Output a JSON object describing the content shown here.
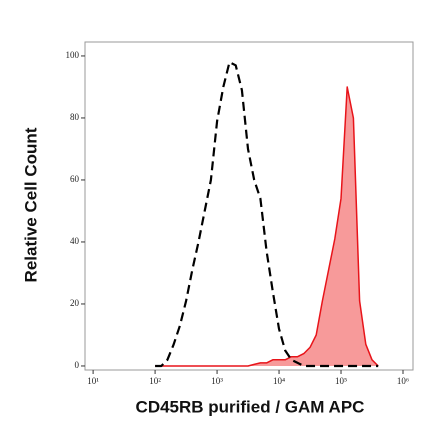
{
  "chart_data": {
    "type": "area",
    "xlabel": "CD45RB purified / GAM APC",
    "ylabel": "Relative Cell Count",
    "xscale": "log",
    "x": [
      100,
      126,
      158,
      200,
      251,
      316,
      398,
      501,
      631,
      794,
      1000,
      1259,
      1585,
      1995,
      2512,
      3162,
      3981,
      5012,
      6310,
      7943,
      10000,
      12589,
      15849,
      19953,
      25119,
      31623,
      39811,
      50119,
      63096,
      79433,
      100000,
      125893,
      158489,
      199526,
      251189,
      316228,
      398107
    ],
    "series": [
      {
        "color": "#000000",
        "linestyle": "dashed",
        "fill": false,
        "values": [
          0,
          0,
          2,
          7,
          13,
          21,
          31,
          40,
          50,
          60,
          79,
          90,
          98,
          97,
          89,
          70,
          60,
          54,
          37,
          24,
          12,
          5,
          2,
          1,
          0,
          0,
          0,
          0,
          0,
          0,
          0,
          0,
          0,
          0,
          0,
          0,
          0
        ]
      },
      {
        "color": "#e8141a",
        "fillcolor": "#f79a9a",
        "linestyle": "solid",
        "fill": true,
        "values": [
          0,
          0,
          0,
          0,
          0,
          0,
          0,
          0,
          0,
          0,
          0,
          0,
          0,
          0,
          0,
          0,
          0.5,
          1,
          1,
          2,
          2,
          2,
          3,
          3,
          4,
          6,
          10,
          21,
          31,
          41,
          54,
          90,
          80,
          21,
          7,
          2,
          0
        ]
      }
    ],
    "xlim": [
      7.4,
      1450000
    ],
    "xticks": [
      {
        "value": 10,
        "label": "10¹"
      },
      {
        "value": 100,
        "label": "10²"
      },
      {
        "value": 1000,
        "label": "10³"
      },
      {
        "value": 10000,
        "label": "10⁴"
      },
      {
        "value": 100000,
        "label": "10⁵"
      },
      {
        "value": 1000000,
        "label": "10⁶"
      }
    ],
    "ylim": [
      -1.3,
      104.5
    ],
    "yticks": [
      0,
      20,
      40,
      60,
      80,
      100
    ]
  }
}
